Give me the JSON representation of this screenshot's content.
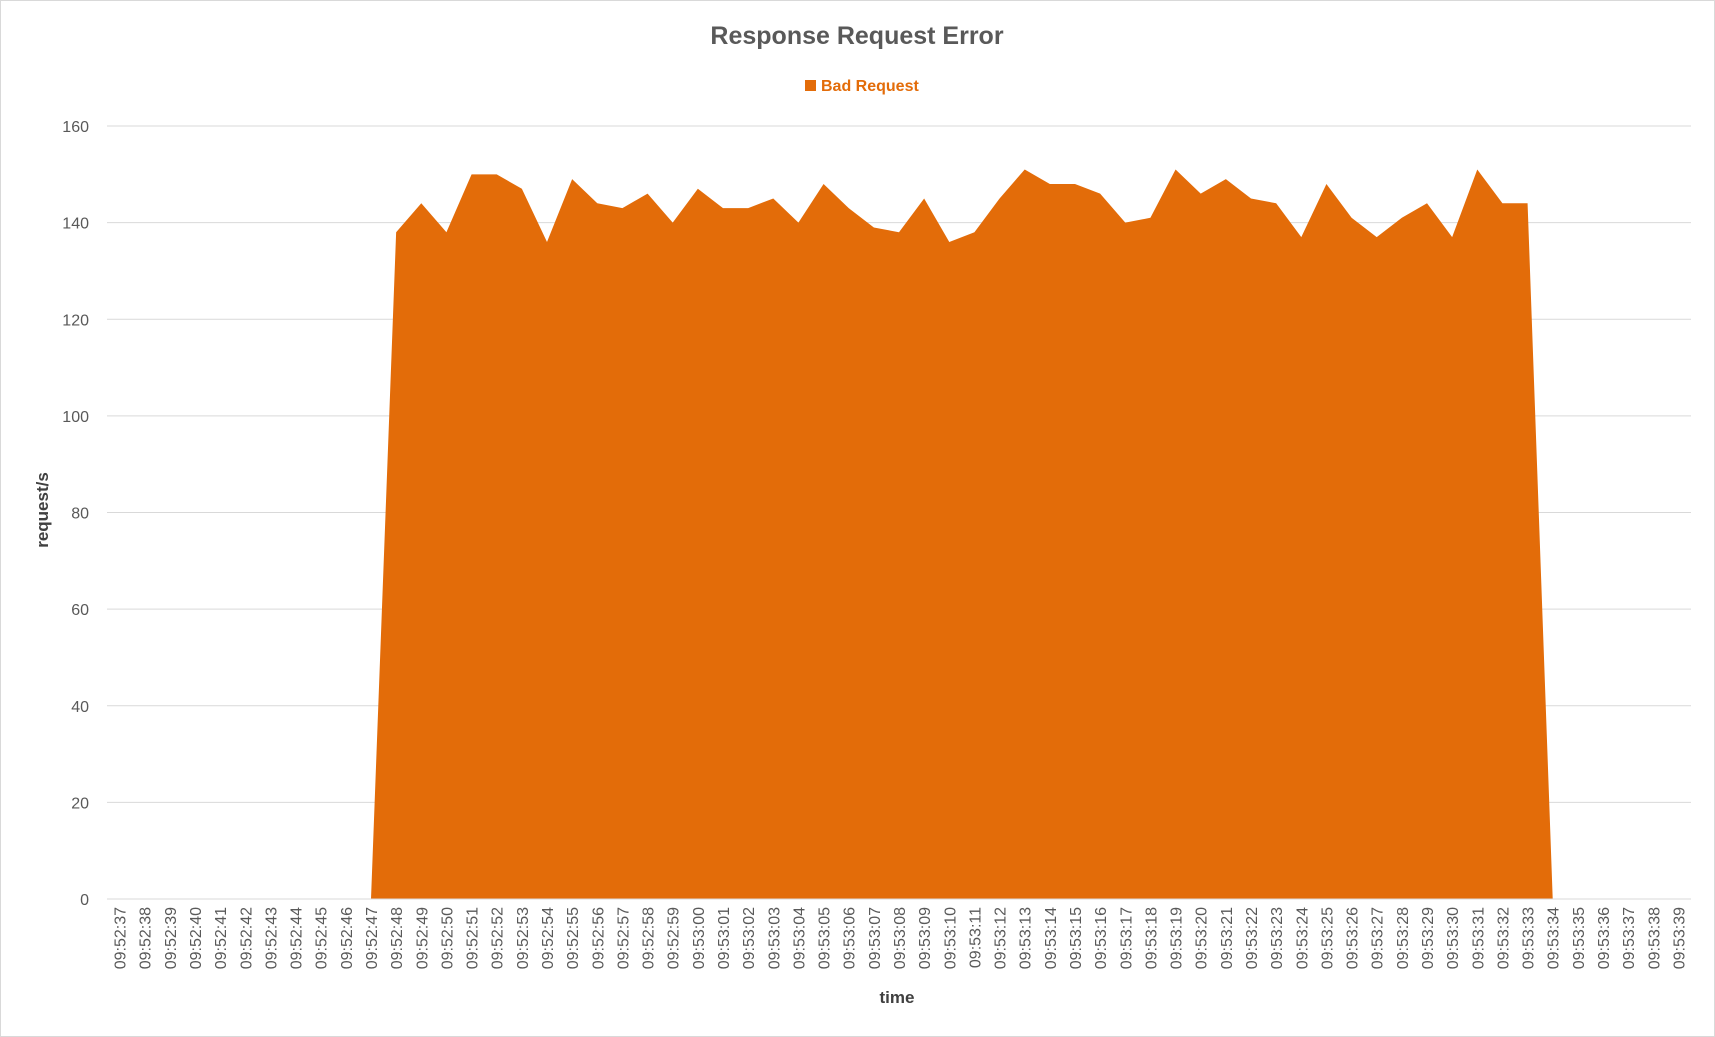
{
  "chart_data": {
    "type": "area",
    "title": "Response Request Error",
    "xlabel": "time",
    "ylabel": "request/s",
    "ylim": [
      0,
      160
    ],
    "yticks": [
      0,
      20,
      40,
      60,
      80,
      100,
      120,
      140,
      160
    ],
    "grid": true,
    "legend_position": "top",
    "categories": [
      "09:52:37",
      "09:52:38",
      "09:52:39",
      "09:52:40",
      "09:52:41",
      "09:52:42",
      "09:52:43",
      "09:52:44",
      "09:52:45",
      "09:52:46",
      "09:52:47",
      "09:52:48",
      "09:52:49",
      "09:52:50",
      "09:52:51",
      "09:52:52",
      "09:52:53",
      "09:52:54",
      "09:52:55",
      "09:52:56",
      "09:52:57",
      "09:52:58",
      "09:52:59",
      "09:53:00",
      "09:53:01",
      "09:53:02",
      "09:53:03",
      "09:53:04",
      "09:53:05",
      "09:53:06",
      "09:53:07",
      "09:53:08",
      "09:53:09",
      "09:53:10",
      "09:53:11",
      "09:53:12",
      "09:53:13",
      "09:53:14",
      "09:53:15",
      "09:53:16",
      "09:53:17",
      "09:53:18",
      "09:53:19",
      "09:53:20",
      "09:53:21",
      "09:53:22",
      "09:53:23",
      "09:53:24",
      "09:53:25",
      "09:53:26",
      "09:53:27",
      "09:53:28",
      "09:53:29",
      "09:53:30",
      "09:53:31",
      "09:53:32",
      "09:53:33",
      "09:53:34",
      "09:53:35",
      "09:53:36",
      "09:53:37",
      "09:53:38",
      "09:53:39"
    ],
    "series": [
      {
        "name": "Bad Request",
        "color": "#e36c09",
        "values": [
          0,
          0,
          0,
          0,
          0,
          0,
          0,
          0,
          0,
          0,
          0,
          138,
          144,
          138,
          150,
          150,
          147,
          136,
          149,
          144,
          143,
          146,
          140,
          147,
          143,
          143,
          145,
          140,
          148,
          143,
          139,
          138,
          145,
          136,
          138,
          145,
          151,
          148,
          148,
          146,
          140,
          141,
          151,
          146,
          149,
          145,
          144,
          137,
          148,
          141,
          137,
          141,
          144,
          137,
          151,
          144,
          144,
          0,
          0,
          0,
          0,
          0,
          0
        ]
      }
    ]
  },
  "colors": {
    "area": "#e36c09",
    "grid": "#d9d9d9",
    "text": "#595959",
    "background": "#ffffff"
  }
}
